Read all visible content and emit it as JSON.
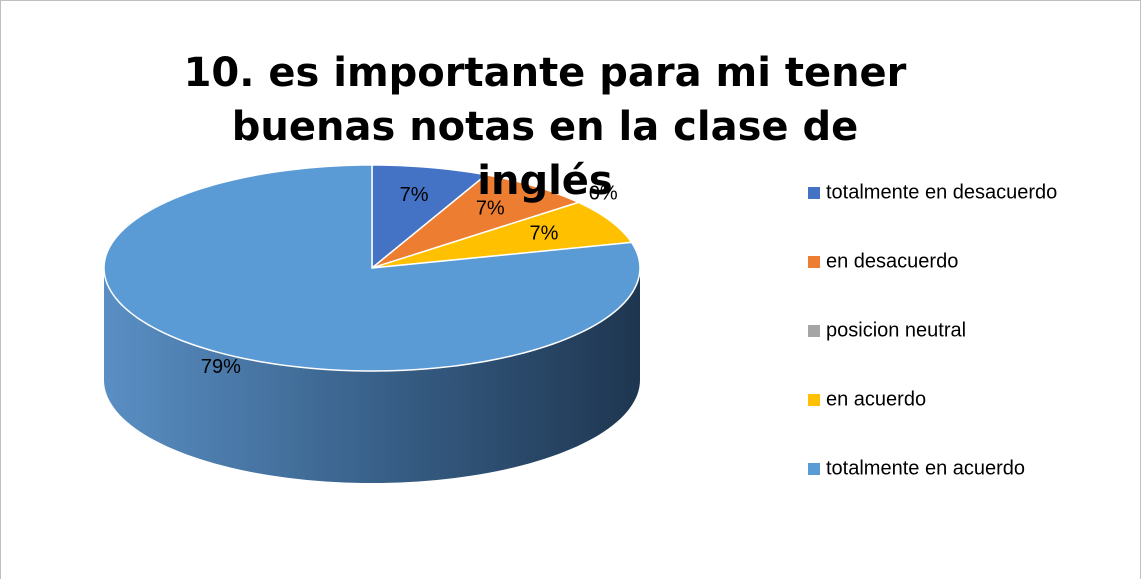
{
  "chart_data": {
    "type": "pie3d",
    "title": "10. es importante para mi tener buenas notas en la clase de inglés",
    "categories": [
      "totalmente en desacuerdo",
      "en desacuerdo",
      "posicion neutral",
      "en acuerdo",
      "totalmente en acuerdo"
    ],
    "values": [
      7,
      7,
      0,
      7,
      79
    ],
    "value_labels": [
      "7%",
      "7%",
      "0%",
      "7%",
      "79%"
    ],
    "colors": [
      "#4472c4",
      "#ed7d31",
      "#a5a5a5",
      "#ffc000",
      "#5b9bd5"
    ],
    "legend": "right"
  }
}
